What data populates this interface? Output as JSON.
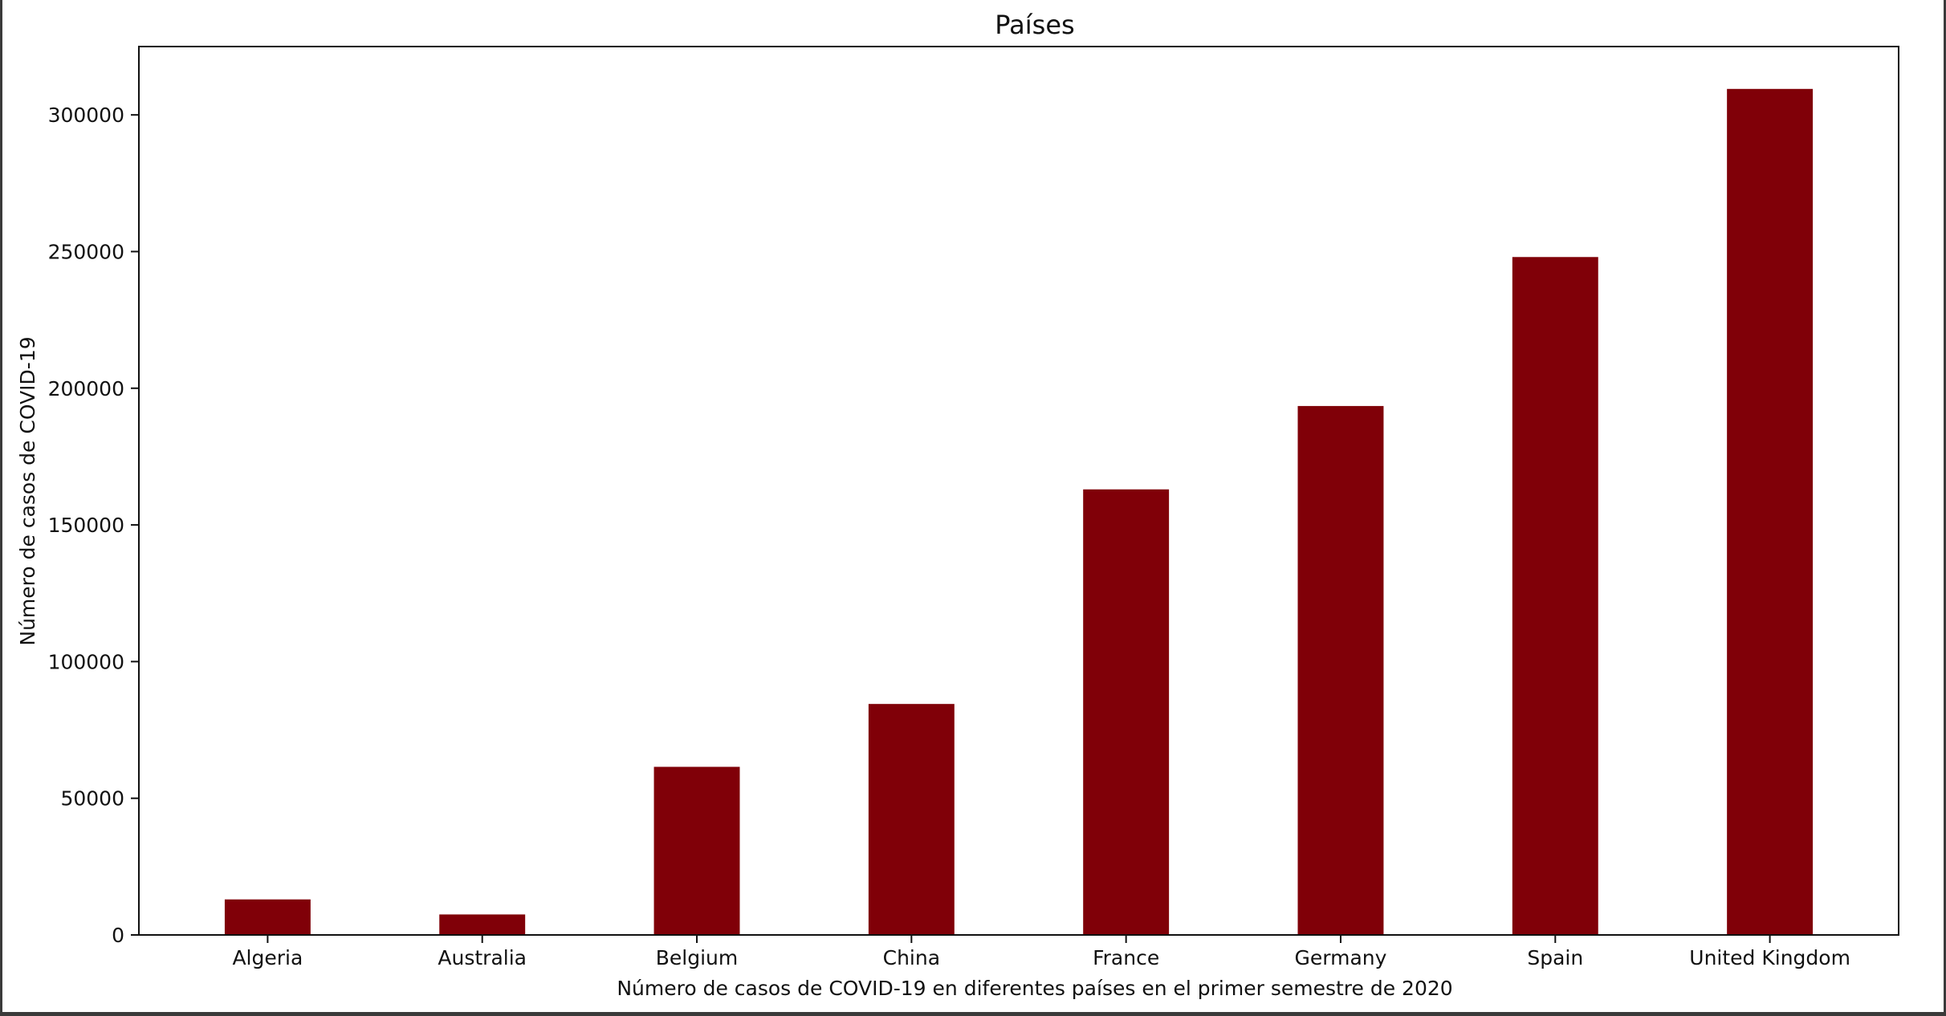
{
  "chart_data": {
    "type": "bar",
    "title": "Países",
    "xlabel": "Número de casos de COVID-19 en diferentes países en el primer semestre de 2020",
    "ylabel": "Número de casos de COVID-19",
    "categories": [
      "Algeria",
      "Australia",
      "Belgium",
      "China",
      "France",
      "Germany",
      "Spain",
      "United Kingdom"
    ],
    "values": [
      13000,
      7500,
      61500,
      84500,
      163000,
      193500,
      248000,
      309500
    ],
    "ylim": [
      0,
      325000
    ],
    "yticks": [
      0,
      50000,
      100000,
      150000,
      200000,
      250000,
      300000
    ],
    "ytick_labels": [
      "0",
      "50000",
      "100000",
      "150000",
      "200000",
      "250000",
      "300000"
    ],
    "bar_color": "#800008",
    "grid": false,
    "legend": "none"
  }
}
